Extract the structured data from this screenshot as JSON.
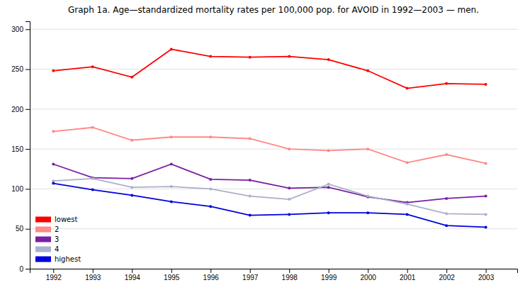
{
  "chart_data": {
    "type": "line",
    "title": "Graph 1a. Age—standardized mortality rates per 100,000 pop. for AVOID in 1992—2003 — men.",
    "x": [
      1992,
      1993,
      1994,
      1995,
      1996,
      1997,
      1998,
      1999,
      2000,
      2001,
      2002,
      2003
    ],
    "series": [
      {
        "name": "lowest",
        "color": "#ff0000",
        "values": [
          248,
          253,
          240,
          275,
          266,
          265,
          266,
          262,
          248,
          226,
          232,
          231
        ]
      },
      {
        "name": "2",
        "color": "#ff8888",
        "values": [
          172,
          177,
          161,
          165,
          165,
          163,
          150,
          148,
          150,
          133,
          143,
          132
        ]
      },
      {
        "name": "3",
        "color": "#7b1fa2",
        "values": [
          131,
          114,
          113,
          131,
          112,
          111,
          101,
          102,
          90,
          83,
          88,
          91
        ]
      },
      {
        "name": "4",
        "color": "#aab0cc",
        "values": [
          110,
          113,
          102,
          103,
          100,
          91,
          87,
          106,
          91,
          81,
          69,
          68
        ]
      },
      {
        "name": "highest",
        "color": "#0000dd",
        "values": [
          107,
          99,
          92,
          84,
          78,
          67,
          68,
          70,
          70,
          68,
          54,
          52
        ]
      }
    ],
    "xlim": [
      1991.4,
      2003.8
    ],
    "xticks": [
      1992,
      1993,
      1994,
      1995,
      1996,
      1997,
      1998,
      1999,
      2000,
      2001,
      2002,
      2003
    ],
    "ylim": [
      0,
      310
    ],
    "yticks": [
      0,
      50,
      100,
      150,
      200,
      250,
      300
    ],
    "grid": true,
    "legend": "lower left",
    "marker": "circle"
  }
}
